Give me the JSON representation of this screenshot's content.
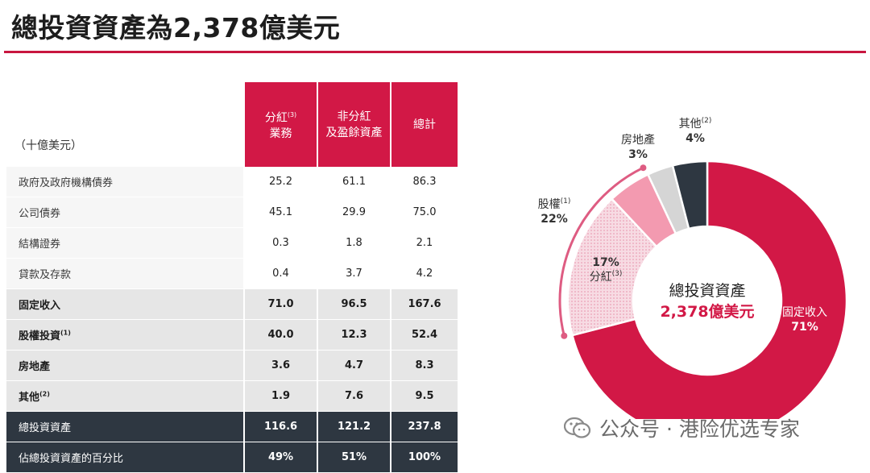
{
  "title": "總投資資產為2,378億美元",
  "table": {
    "unit": "（十億美元）",
    "headers": [
      {
        "line1": "分紅",
        "sup": "(3)",
        "line2": "業務"
      },
      {
        "line1": "非分紅",
        "sup": "",
        "line2": "及盈餘資產"
      },
      {
        "line1": "總計",
        "sup": "",
        "line2": ""
      }
    ],
    "rows": [
      {
        "label": "政府及政府機構債券",
        "sup": "",
        "v": [
          "25.2",
          "61.1",
          "86.3"
        ],
        "kind": "detail"
      },
      {
        "label": "公司債券",
        "sup": "",
        "v": [
          "45.1",
          "29.9",
          "75.0"
        ],
        "kind": "detail"
      },
      {
        "label": "結構證券",
        "sup": "",
        "v": [
          "0.3",
          "1.8",
          "2.1"
        ],
        "kind": "detail"
      },
      {
        "label": "貸款及存款",
        "sup": "",
        "v": [
          "0.4",
          "3.7",
          "4.2"
        ],
        "kind": "detail"
      },
      {
        "label": "固定收入",
        "sup": "",
        "v": [
          "71.0",
          "96.5",
          "167.6"
        ],
        "kind": "sub"
      },
      {
        "label": "股權投資",
        "sup": "(1)",
        "v": [
          "40.0",
          "12.3",
          "52.4"
        ],
        "kind": "sub"
      },
      {
        "label": "房地產",
        "sup": "",
        "v": [
          "3.6",
          "4.7",
          "8.3"
        ],
        "kind": "sub"
      },
      {
        "label": "其他",
        "sup": "(2)",
        "v": [
          "1.9",
          "7.6",
          "9.5"
        ],
        "kind": "sub"
      },
      {
        "label": "總投資資產",
        "sup": "",
        "v": [
          "116.6",
          "121.2",
          "237.8"
        ],
        "kind": "total"
      },
      {
        "label": "佔總投資資產的百分比",
        "sup": "",
        "v": [
          "49%",
          "51%",
          "100%"
        ],
        "kind": "total"
      }
    ]
  },
  "chart_data": {
    "type": "pie",
    "center_label": {
      "line1": "總投資資產",
      "line2": "2,378億美元"
    },
    "slices": [
      {
        "name": "固定收入",
        "sup": "",
        "value": 71,
        "label": "71%",
        "color": "#d21846"
      },
      {
        "name": "分紅",
        "sup": "(3)",
        "value": 17,
        "label": "17%",
        "color": "#f7d8e0",
        "dotted": true
      },
      {
        "name": "股權",
        "sup": "",
        "value": 5,
        "label": "",
        "color": "#f39ab0"
      },
      {
        "name": "房地產",
        "sup": "",
        "value": 3,
        "label": "3%",
        "color": "#d5d5d5"
      },
      {
        "name": "其他",
        "sup": "(2)",
        "value": 4,
        "label": "4%",
        "color": "#2e3741"
      }
    ],
    "bracket": {
      "name": "股權",
      "sup": "(1)",
      "label": "22%",
      "color": "#de5c82"
    },
    "center_colors": {
      "line1": "#222222",
      "line2": "#d21846"
    }
  },
  "watermark": "公众号 · 港险优选专家"
}
